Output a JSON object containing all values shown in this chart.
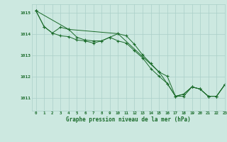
{
  "title": "Graphe pression niveau de la mer (hPa)",
  "background_color": "#cce8e0",
  "plot_bg_color": "#cce8e0",
  "grid_color": "#aacfc8",
  "line_color": "#1a6b2a",
  "xlim": [
    -0.5,
    23
  ],
  "ylim": [
    1010.4,
    1015.4
  ],
  "yticks": [
    1011,
    1012,
    1013,
    1014,
    1015
  ],
  "xticks": [
    0,
    1,
    2,
    3,
    4,
    5,
    6,
    7,
    8,
    9,
    10,
    11,
    12,
    13,
    14,
    15,
    16,
    17,
    18,
    19,
    20,
    21,
    22,
    23
  ],
  "series1_x": [
    0,
    1,
    2,
    3,
    4,
    5,
    6,
    7,
    8,
    9,
    10,
    11,
    12,
    13,
    14,
    15,
    16,
    17,
    18,
    19,
    20,
    21,
    22,
    23
  ],
  "series1_y": [
    1015.1,
    1014.35,
    1014.05,
    1014.32,
    1014.22,
    1013.85,
    1013.72,
    1013.68,
    1013.68,
    1013.85,
    1014.02,
    1013.92,
    1013.52,
    1013.02,
    1012.62,
    1012.22,
    1012.02,
    1011.08,
    1011.18,
    1011.52,
    1011.42,
    1011.08,
    1011.08,
    1011.62
  ],
  "series2_x": [
    0,
    1,
    2,
    3,
    4,
    5,
    6,
    7,
    8,
    9,
    10,
    11,
    12,
    13,
    14,
    15,
    16,
    17,
    18,
    19,
    20,
    21,
    22,
    23
  ],
  "series2_y": [
    1015.1,
    1014.35,
    1014.05,
    1013.92,
    1013.88,
    1013.72,
    1013.68,
    1013.58,
    1013.68,
    1013.85,
    1013.68,
    1013.58,
    1013.22,
    1012.88,
    1012.38,
    1012.02,
    1011.68,
    1011.08,
    1011.18,
    1011.52,
    1011.42,
    1011.08,
    1011.08,
    1011.62
  ],
  "series3_x": [
    0,
    4,
    10,
    15,
    16,
    17,
    18,
    19,
    20,
    21,
    22,
    23
  ],
  "series3_y": [
    1015.1,
    1014.22,
    1014.02,
    1012.22,
    1011.68,
    1011.08,
    1011.08,
    1011.52,
    1011.42,
    1011.08,
    1011.08,
    1011.62
  ]
}
